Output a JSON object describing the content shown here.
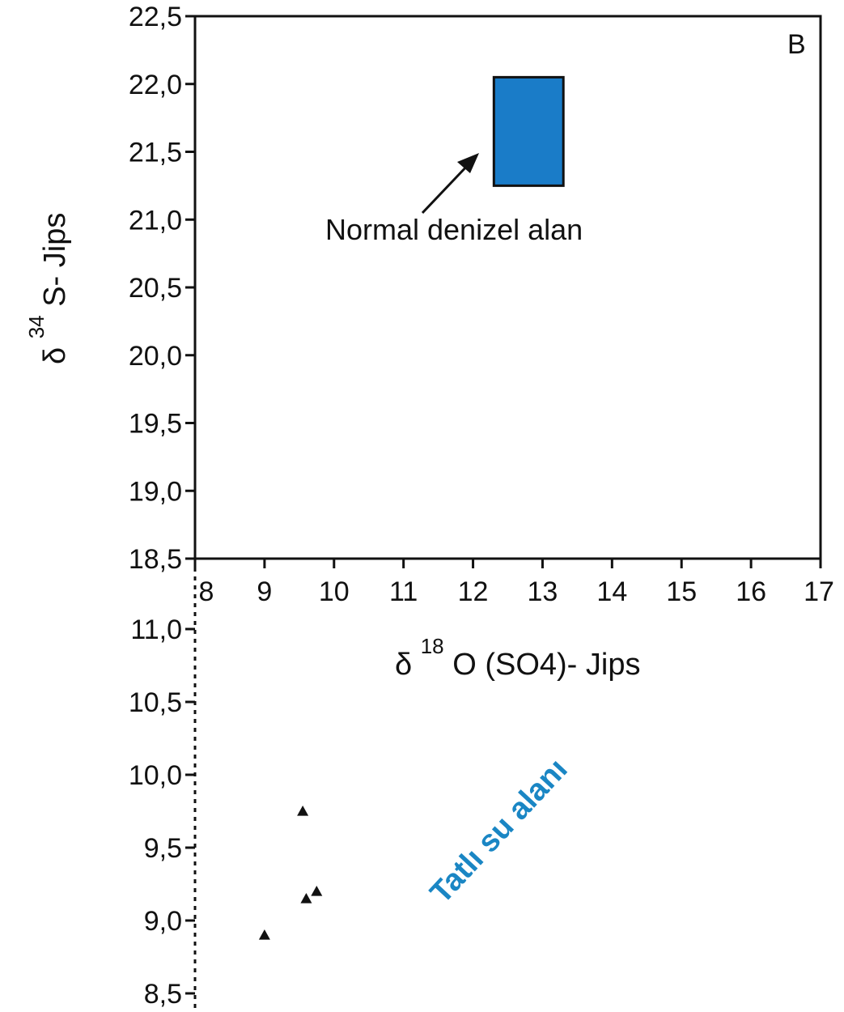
{
  "chart_data": {
    "type": "scatter",
    "panel_label": "B",
    "xlabel": {
      "prefix": "δ",
      "sup": "18",
      "rest": "O (SO4)- Jips"
    },
    "ylabel": {
      "prefix": "δ",
      "sup": "34",
      "rest": "S- Jips"
    },
    "xlim": [
      8,
      17
    ],
    "ylim_upper": [
      18.5,
      22.5
    ],
    "ylim_lower": [
      8.5,
      11.0
    ],
    "x_ticks": [
      "8",
      "9",
      "10",
      "11",
      "12",
      "13",
      "14",
      "15",
      "16",
      "17"
    ],
    "y_ticks_upper": [
      "22,5",
      "22,0",
      "21,5",
      "21,0",
      "20,5",
      "20,0",
      "19,5",
      "19,0",
      "18,5"
    ],
    "y_ticks_lower": [
      "11,0",
      "10,5",
      "10,0",
      "9,5",
      "9,0",
      "8,5"
    ],
    "field": {
      "label": "Normal denizel alan",
      "x_range": [
        12.3,
        13.3
      ],
      "y_range": [
        21.25,
        22.05
      ],
      "color": "#1a7cc8"
    },
    "points": [
      {
        "x": 9.0,
        "y": 8.9
      },
      {
        "x": 9.55,
        "y": 9.75
      },
      {
        "x": 9.6,
        "y": 9.15
      },
      {
        "x": 9.75,
        "y": 9.2
      }
    ],
    "freshwater_label": "Tatlı su alanı",
    "freshwater_color": "#1a86c4"
  }
}
